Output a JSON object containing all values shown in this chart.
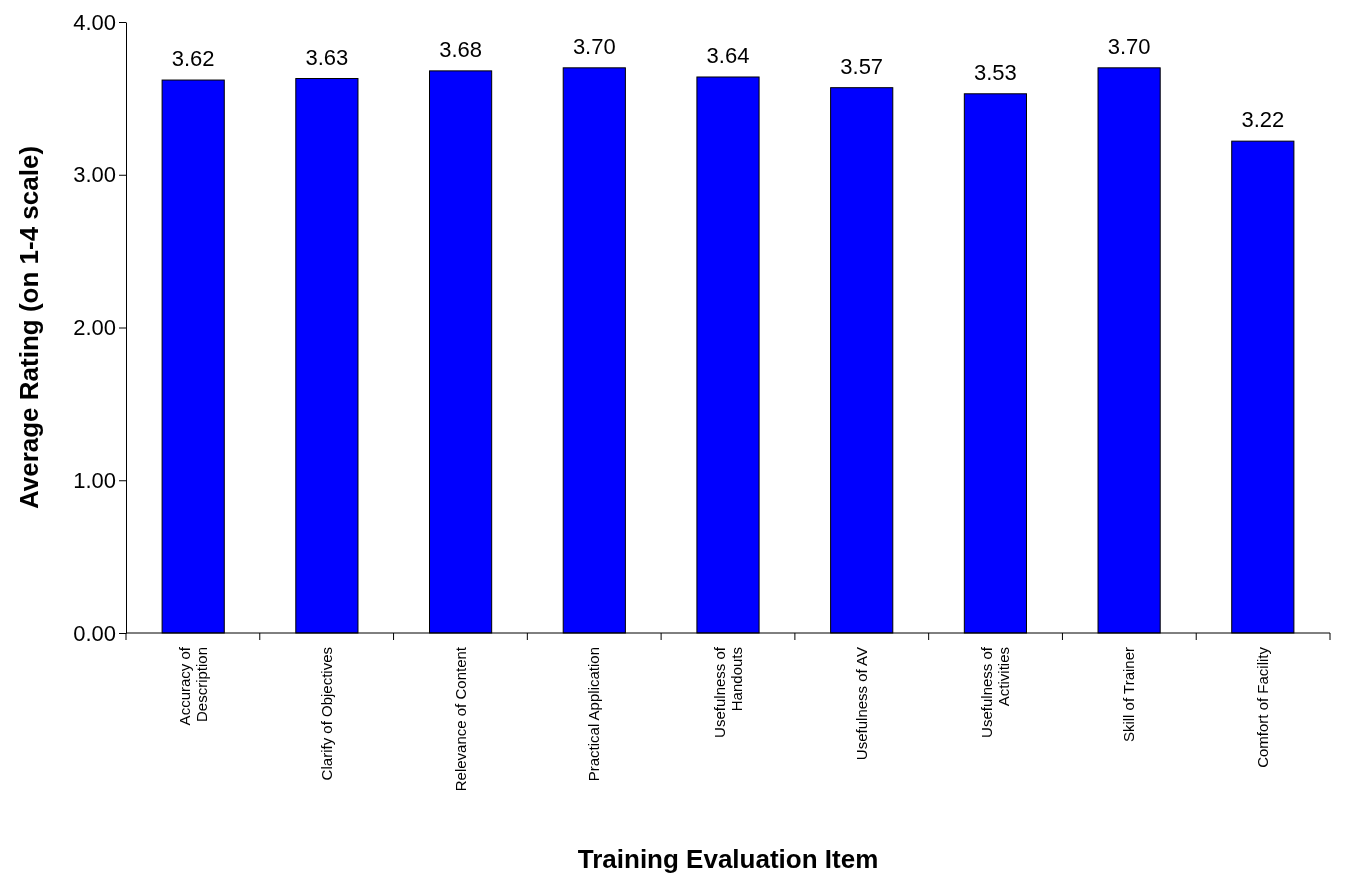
{
  "chart_data": {
    "type": "bar",
    "xlabel": "Training Evaluation Item",
    "ylabel": "Average Rating (on 1-4 scale)",
    "categories": [
      "Accuracy of Description",
      "Clarify of Objectives",
      "Relevance of Content",
      "Practical Application",
      "Usefulness of Handouts",
      "Usefulness of AV",
      "Usefulness of Activities",
      "Skill of Trainer",
      "Comfort of Facility"
    ],
    "values": [
      3.62,
      3.63,
      3.68,
      3.7,
      3.64,
      3.57,
      3.53,
      3.7,
      3.22
    ],
    "value_labels": [
      "3.62",
      "3.63",
      "3.68",
      "3.70",
      "3.64",
      "3.57",
      "3.53",
      "3.70",
      "3.22"
    ],
    "color": "#0000ff",
    "data_labels": false,
    "ylim": [
      0,
      4
    ],
    "yticks": [
      {
        "value": 0,
        "label": "0.00"
      },
      {
        "value": 1,
        "label": "1.00"
      },
      {
        "value": 2,
        "label": "2.00"
      },
      {
        "value": 3,
        "label": "3.00"
      },
      {
        "value": 4,
        "label": "4.00"
      }
    ]
  }
}
